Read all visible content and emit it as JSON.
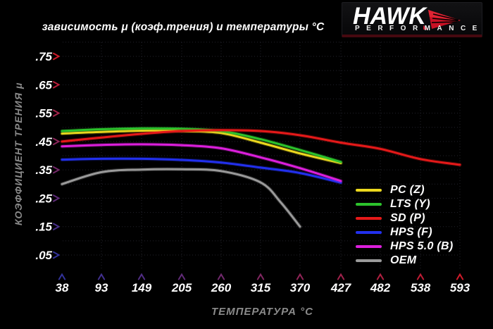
{
  "header": {
    "logo": {
      "brand": "HAWK",
      "sub": "PERFORMANCE",
      "accent": "#c81124"
    }
  },
  "chart_data": {
    "type": "line",
    "title": "зависимость μ (коэф.трения) и температуры °C",
    "xlabel": "ТЕМПЕРАТУРА °C",
    "ylabel": "КОЭФФИЦИЕНТ ТРЕНИЯ μ",
    "xlim": [
      38,
      593
    ],
    "ylim": [
      0,
      0.8
    ],
    "x_ticks": [
      38,
      93,
      149,
      205,
      260,
      315,
      370,
      427,
      482,
      538,
      593
    ],
    "y_tick_labels": [
      ".75",
      ".65",
      ".55",
      ".45",
      ".35",
      ".25",
      ".15",
      ".05"
    ],
    "y_tick_values": [
      0.75,
      0.65,
      0.55,
      0.45,
      0.35,
      0.25,
      0.15,
      0.05
    ],
    "grid": {
      "on": true,
      "y_step": 0.05,
      "color": "#23232c"
    },
    "axis_gradient": {
      "red": "#cf1b2a",
      "blue": "#32329a"
    },
    "legend_position": "right-middle",
    "series": [
      {
        "name": "PC (Z)",
        "color": "#ecd81e",
        "temps": [
          38,
          93,
          149,
          205,
          260,
          315,
          370,
          427
        ],
        "mu": [
          0.478,
          0.484,
          0.488,
          0.487,
          0.48,
          0.446,
          0.408,
          0.374
        ]
      },
      {
        "name": "LTS (Y)",
        "color": "#2cc32c",
        "temps": [
          38,
          93,
          149,
          205,
          260,
          315,
          370,
          427
        ],
        "mu": [
          0.487,
          0.493,
          0.496,
          0.495,
          0.487,
          0.458,
          0.42,
          0.378
        ]
      },
      {
        "name": "SD (P)",
        "color": "#e51919",
        "temps": [
          38,
          93,
          149,
          205,
          260,
          315,
          370,
          427,
          482,
          538,
          593
        ],
        "mu": [
          0.45,
          0.464,
          0.477,
          0.487,
          0.49,
          0.487,
          0.472,
          0.446,
          0.424,
          0.388,
          0.368
        ]
      },
      {
        "name": "HPS (F)",
        "color": "#2230ee",
        "temps": [
          38,
          93,
          149,
          205,
          260,
          315,
          370,
          427
        ],
        "mu": [
          0.386,
          0.389,
          0.389,
          0.385,
          0.376,
          0.358,
          0.339,
          0.305
        ]
      },
      {
        "name": "HPS 5.0 (B)",
        "color": "#dc1fdc",
        "temps": [
          38,
          93,
          149,
          205,
          260,
          315,
          370,
          427
        ],
        "mu": [
          0.433,
          0.438,
          0.44,
          0.437,
          0.426,
          0.394,
          0.356,
          0.311
        ]
      },
      {
        "name": "OEM",
        "color": "#9a9a9a",
        "temps": [
          38,
          93,
          149,
          205,
          260,
          315,
          343,
          370
        ],
        "mu": [
          0.3,
          0.342,
          0.351,
          0.352,
          0.346,
          0.306,
          0.236,
          0.15
        ]
      }
    ]
  }
}
